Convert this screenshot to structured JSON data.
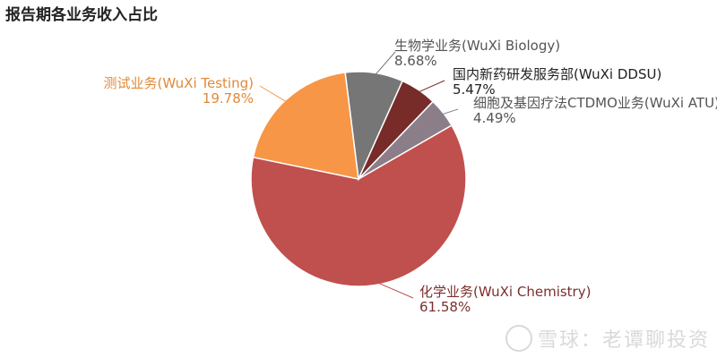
{
  "chart_data": {
    "type": "pie",
    "title": "报告期各业务收入占比",
    "slices": [
      {
        "label": "化学业务(WuXi Chemistry)",
        "percent_label": "61.58%",
        "value": 61.58,
        "color": "#C0504D",
        "label_color": "#7A2F2D"
      },
      {
        "label": "测试业务(WuXi Testing)",
        "percent_label": "19.78%",
        "value": 19.78,
        "color": "#F79646",
        "label_color": "#E08A3A"
      },
      {
        "label": "生物学业务(WuXi Biology)",
        "percent_label": "8.68%",
        "value": 8.68,
        "color": "#767676",
        "label_color": "#555555"
      },
      {
        "label": "国内新药研发服务部(WuXi DDSU)",
        "percent_label": "5.47%",
        "value": 5.47,
        "color": "#772C2A",
        "label_color": "#222222"
      },
      {
        "label": "细胞及基因疗法CTDMO业务(WuXi ATU)",
        "percent_label": "4.49%",
        "value": 4.49,
        "color": "#8C7E89",
        "label_color": "#555555"
      }
    ]
  },
  "watermark": {
    "text": "雪球：老谭聊投资",
    "icon": "snowball-logo-icon"
  }
}
